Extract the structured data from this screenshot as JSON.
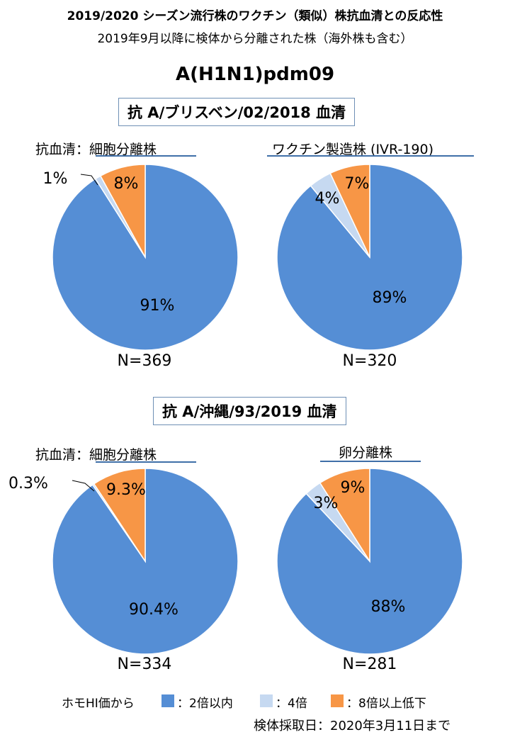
{
  "header": {
    "title": "2019/2020 シーズン流行株のワクチン（類似）株抗血清との反応性",
    "subtitle": "2019年9月以降に検体から分離された株（海外株も含む）",
    "subtype": "A(H1N1)pdm09"
  },
  "sections": [
    {
      "label": "抗 A/ブリスベン/02/2018 血清"
    },
    {
      "label": "抗 A/沖縄/93/2019 血清"
    }
  ],
  "colors": {
    "within2": "#558ed5",
    "fold4": "#c6d9f1",
    "fold8": "#f79646"
  },
  "chart_data": [
    {
      "type": "pie",
      "title": "抗血清：細胞分離株",
      "serum": "抗 A/ブリスベン/02/2018 血清",
      "categories": [
        "2倍以内",
        "4倍",
        "8倍以上低下"
      ],
      "values": [
        91,
        1,
        8
      ],
      "labels": [
        "91%",
        "1%",
        "8%"
      ],
      "n": "N=369"
    },
    {
      "type": "pie",
      "title": "ワクチン製造株 (IVR-190)",
      "serum": "抗 A/ブリスベン/02/2018 血清",
      "categories": [
        "2倍以内",
        "4倍",
        "8倍以上低下"
      ],
      "values": [
        89,
        4,
        7
      ],
      "labels": [
        "89%",
        "4%",
        "7%"
      ],
      "n": "N=320"
    },
    {
      "type": "pie",
      "title": "抗血清：細胞分離株",
      "serum": "抗 A/沖縄/93/2019 血清",
      "categories": [
        "2倍以内",
        "4倍",
        "8倍以上低下"
      ],
      "values": [
        90.4,
        0.3,
        9.3
      ],
      "labels": [
        "90.4%",
        "0.3%",
        "9.3%"
      ],
      "n": "N=334"
    },
    {
      "type": "pie",
      "title": "卵分離株",
      "serum": "抗 A/沖縄/93/2019 血清",
      "categories": [
        "2倍以内",
        "4倍",
        "8倍以上低下"
      ],
      "values": [
        88,
        3,
        9
      ],
      "labels": [
        "88%",
        "3%",
        "9%"
      ],
      "n": "N=281"
    }
  ],
  "legend": {
    "prefix": "ホモHI価から",
    "items": [
      {
        "label": "：2倍以内",
        "color": "#558ed5"
      },
      {
        "label": "：4倍",
        "color": "#c6d9f1"
      },
      {
        "label": "：8倍以上低下",
        "color": "#f79646"
      }
    ]
  },
  "footer": {
    "date_note": "検体採取日：2020年3月11日まで"
  }
}
